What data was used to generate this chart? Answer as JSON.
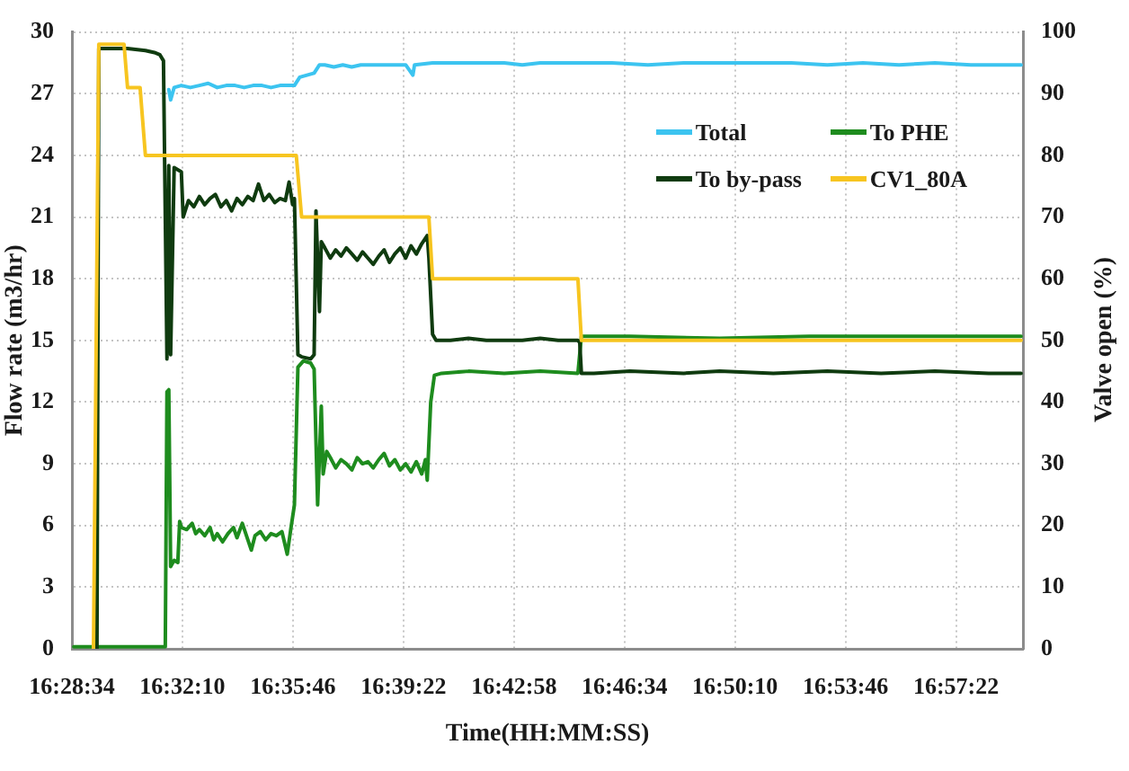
{
  "chart_data": {
    "type": "line",
    "xlabel": "Time(HH:MM:SS)",
    "ylabel": "Flow rate (m3/hr)",
    "y2label": "Valve open (%)",
    "xlim": [
      16.4761,
      16.9924
    ],
    "xticks": [
      {
        "value": 16.4761,
        "label": "16:28:34"
      },
      {
        "value": 16.5361,
        "label": "16:32:10"
      },
      {
        "value": 16.5961,
        "label": "16:35:46"
      },
      {
        "value": 16.6561,
        "label": "16:39:22"
      },
      {
        "value": 16.7161,
        "label": "16:42:58"
      },
      {
        "value": 16.7761,
        "label": "16:46:34"
      },
      {
        "value": 16.8361,
        "label": "16:50:10"
      },
      {
        "value": 16.8961,
        "label": "16:53:46"
      },
      {
        "value": 16.9561,
        "label": "16:57:22"
      }
    ],
    "ylim": [
      0,
      30
    ],
    "yticks": [
      0,
      3,
      6,
      9,
      12,
      15,
      18,
      21,
      24,
      27,
      30
    ],
    "y2lim": [
      0,
      100
    ],
    "y2ticks": [
      0,
      10,
      20,
      30,
      40,
      50,
      60,
      70,
      80,
      90,
      100
    ],
    "grid": true,
    "legend": "top right",
    "marker": "none",
    "series": [
      {
        "name": "Total",
        "color": "#3cc4f0",
        "x": [
          16.5287,
          16.5297,
          16.5316,
          16.5355,
          16.5404,
          16.5453,
          16.5501,
          16.555,
          16.5599,
          16.5647,
          16.5696,
          16.5745,
          16.5793,
          16.5842,
          16.5891,
          16.594,
          16.5969,
          16.5998,
          16.6037,
          16.6076,
          16.6105,
          16.6134,
          16.6183,
          16.6232,
          16.628,
          16.6329,
          16.6378,
          16.6427,
          16.6475,
          16.6524,
          16.6573,
          16.6612,
          16.6621,
          16.6719,
          16.6816,
          16.6914,
          16.7011,
          16.7108,
          16.7206,
          16.7303,
          16.7498,
          16.7693,
          16.7888,
          16.8082,
          16.8277,
          16.8472,
          16.8667,
          16.8862,
          16.9056,
          16.9251,
          16.9446,
          16.9641,
          16.9914
        ],
        "values": [
          27.2,
          26.7,
          27.3,
          27.4,
          27.3,
          27.4,
          27.5,
          27.3,
          27.4,
          27.4,
          27.3,
          27.4,
          27.4,
          27.3,
          27.4,
          27.4,
          27.4,
          27.8,
          27.9,
          28.0,
          28.4,
          28.4,
          28.3,
          28.4,
          28.3,
          28.4,
          28.4,
          28.4,
          28.4,
          28.4,
          28.4,
          27.9,
          28.4,
          28.5,
          28.5,
          28.5,
          28.5,
          28.5,
          28.4,
          28.5,
          28.5,
          28.5,
          28.4,
          28.5,
          28.5,
          28.5,
          28.5,
          28.4,
          28.5,
          28.4,
          28.5,
          28.4,
          28.4
        ]
      },
      {
        "name": "To PHE",
        "color": "#1e8c1e",
        "x": [
          16.4771,
          16.5268,
          16.5277,
          16.5287,
          16.5297,
          16.5316,
          16.5336,
          16.5346,
          16.5355,
          16.5384,
          16.5414,
          16.5433,
          16.5453,
          16.5482,
          16.5511,
          16.5531,
          16.555,
          16.5579,
          16.5608,
          16.5638,
          16.5657,
          16.5686,
          16.5716,
          16.5735,
          16.5755,
          16.5784,
          16.5813,
          16.5842,
          16.5871,
          16.5901,
          16.593,
          16.5949,
          16.5969,
          16.5988,
          16.6018,
          16.6057,
          16.6076,
          16.6095,
          16.6115,
          16.6125,
          16.6144,
          16.6164,
          16.6193,
          16.6222,
          16.6251,
          16.6281,
          16.631,
          16.6339,
          16.6368,
          16.6397,
          16.6427,
          16.6456,
          16.6485,
          16.6514,
          16.6544,
          16.6573,
          16.6602,
          16.6631,
          16.666,
          16.668,
          16.669,
          16.6709,
          16.6729,
          16.6768,
          16.6914,
          16.7108,
          16.7303,
          16.7508,
          16.7527,
          16.779,
          16.8277,
          16.8764,
          16.9251,
          16.9914
        ],
        "values": [
          0.1,
          0.1,
          12.5,
          12.6,
          4.0,
          4.3,
          4.2,
          6.2,
          5.9,
          5.8,
          6.1,
          5.6,
          5.8,
          5.5,
          5.9,
          5.3,
          5.6,
          5.2,
          5.6,
          5.9,
          5.4,
          6.1,
          5.3,
          4.8,
          5.5,
          5.7,
          5.3,
          5.6,
          5.5,
          5.7,
          4.6,
          5.8,
          7.0,
          13.7,
          14.0,
          13.9,
          13.6,
          7.0,
          11.8,
          8.5,
          9.6,
          9.3,
          8.8,
          9.2,
          9.0,
          8.7,
          9.3,
          9.0,
          9.1,
          8.8,
          9.2,
          9.5,
          8.9,
          9.2,
          8.7,
          9.0,
          8.6,
          9.1,
          8.5,
          9.2,
          8.2,
          12.0,
          13.3,
          13.4,
          13.5,
          13.4,
          13.5,
          13.4,
          15.2,
          15.2,
          15.1,
          15.2,
          15.2,
          15.2
        ]
      },
      {
        "name": "To by-pass",
        "color": "#0f3b0f",
        "x": [
          16.4897,
          16.4907,
          16.4966,
          16.5063,
          16.516,
          16.5209,
          16.5238,
          16.5258,
          16.5277,
          16.5287,
          16.5297,
          16.5316,
          16.5355,
          16.5365,
          16.5394,
          16.5423,
          16.5453,
          16.5482,
          16.5511,
          16.554,
          16.557,
          16.5599,
          16.5628,
          16.5657,
          16.5686,
          16.5716,
          16.5745,
          16.5774,
          16.5803,
          16.5832,
          16.5862,
          16.5891,
          16.592,
          16.594,
          16.5959,
          16.5969,
          16.5988,
          16.6008,
          16.6057,
          16.6076,
          16.6086,
          16.6105,
          16.6115,
          16.6134,
          16.6164,
          16.6193,
          16.6222,
          16.6251,
          16.6281,
          16.631,
          16.6339,
          16.6368,
          16.6397,
          16.6427,
          16.6456,
          16.6485,
          16.6514,
          16.6544,
          16.6573,
          16.6602,
          16.6631,
          16.666,
          16.669,
          16.6699,
          16.6719,
          16.6738,
          16.6816,
          16.6914,
          16.7011,
          16.7108,
          16.7206,
          16.7303,
          16.7401,
          16.7508,
          16.7518,
          16.7527,
          16.7595,
          16.779,
          16.8082,
          16.8277,
          16.8569,
          16.8862,
          16.9154,
          16.9446,
          16.9738,
          16.9914
        ],
        "values": [
          0,
          29.2,
          29.2,
          29.2,
          29.1,
          29.0,
          28.9,
          28.6,
          14.1,
          23.5,
          14.3,
          23.4,
          23.2,
          21.0,
          21.8,
          21.5,
          22.0,
          21.6,
          21.9,
          22.1,
          21.5,
          21.8,
          21.3,
          21.9,
          21.6,
          22.0,
          21.8,
          22.6,
          21.8,
          22.1,
          21.7,
          21.9,
          21.8,
          22.7,
          21.6,
          21.9,
          14.3,
          14.2,
          14.1,
          14.3,
          21.3,
          16.4,
          19.8,
          19.5,
          19.0,
          19.4,
          19.1,
          19.5,
          19.2,
          18.9,
          19.3,
          19.0,
          18.7,
          19.1,
          19.4,
          18.8,
          19.2,
          19.5,
          19.0,
          19.6,
          19.2,
          19.7,
          20.1,
          19.0,
          15.3,
          15.0,
          15.0,
          15.1,
          15.0,
          15.0,
          15.0,
          15.1,
          15.0,
          15.0,
          14.9,
          13.4,
          13.4,
          13.5,
          13.4,
          13.5,
          13.4,
          13.5,
          13.4,
          13.5,
          13.4,
          13.4
        ]
      },
      {
        "name": "CV1_80A",
        "color": "#f7c520",
        "axis": "y2",
        "x": [
          16.4878,
          16.4907,
          16.5044,
          16.5063,
          16.5131,
          16.516,
          16.5979,
          16.6008,
          16.6699,
          16.6719,
          16.7508,
          16.7527,
          16.9914
        ],
        "values": [
          0,
          98,
          98,
          91,
          91,
          80,
          80,
          70,
          70,
          60,
          60,
          50,
          50
        ]
      }
    ]
  }
}
